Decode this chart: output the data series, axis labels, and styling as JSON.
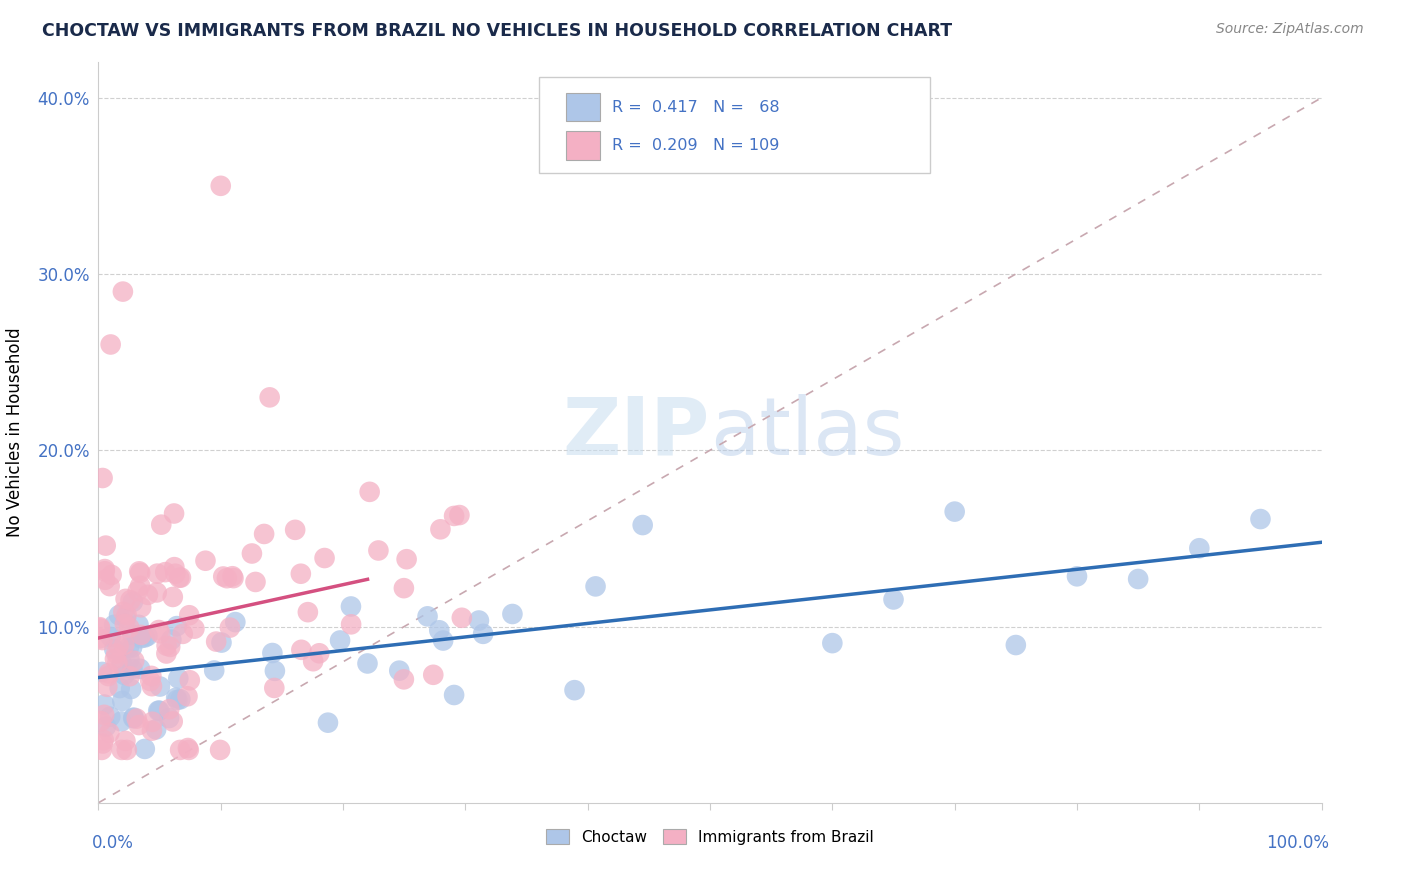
{
  "title": "CHOCTAW VS IMMIGRANTS FROM BRAZIL NO VEHICLES IN HOUSEHOLD CORRELATION CHART",
  "source": "Source: ZipAtlas.com",
  "ylabel": "No Vehicles in Household",
  "xlim": [
    0,
    100
  ],
  "ylim": [
    0,
    42
  ],
  "yticks": [
    10,
    20,
    30,
    40
  ],
  "ytick_labels": [
    "10.0%",
    "20.0%",
    "30.0%",
    "40.0%"
  ],
  "choctaw_color": "#aec6e8",
  "brazil_color": "#f4b0c4",
  "choctaw_line_color": "#2e6db4",
  "brazil_line_color": "#d45080",
  "diag_line_color": "#d0b0b8",
  "watermark_zip": "ZIP",
  "watermark_atlas": "atlas",
  "legend_text1": "R =  0.417   N =   68",
  "legend_text2": "R =  0.209   N = 109"
}
